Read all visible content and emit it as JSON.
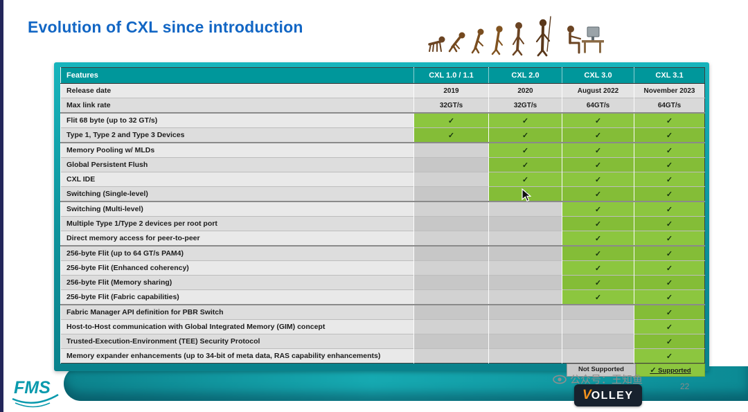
{
  "slide": {
    "title": "Evolution of CXL since introduction",
    "page_number": "22",
    "watermark_text": "公众号：王知鱼"
  },
  "logos": {
    "fms": "FMS",
    "volley_v": "V",
    "volley_rest": "OLLEY"
  },
  "table": {
    "check_glyph": "✓",
    "columns": [
      "Features",
      "CXL 1.0 / 1.1",
      "CXL 2.0",
      "CXL 3.0",
      "CXL 3.1"
    ],
    "info_rows": [
      {
        "feature": "Release date",
        "values": [
          "2019",
          "2020",
          "August 2022",
          "November 2023"
        ]
      },
      {
        "feature": "Max link rate",
        "values": [
          "32GT/s",
          "32GT/s",
          "64GT/s",
          "64GT/s"
        ]
      }
    ],
    "feature_rows": [
      {
        "feature": "Flit 68 byte (up to 32 GT/s)",
        "support": [
          true,
          true,
          true,
          true
        ],
        "group_start": true
      },
      {
        "feature": "Type 1, Type 2 and Type 3 Devices",
        "support": [
          true,
          true,
          true,
          true
        ]
      },
      {
        "feature": "Memory Pooling w/ MLDs",
        "support": [
          false,
          true,
          true,
          true
        ],
        "group_start": true
      },
      {
        "feature": "Global Persistent Flush",
        "support": [
          false,
          true,
          true,
          true
        ]
      },
      {
        "feature": "CXL IDE",
        "support": [
          false,
          true,
          true,
          true
        ]
      },
      {
        "feature": "Switching (Single-level)",
        "support": [
          false,
          true,
          true,
          true
        ]
      },
      {
        "feature": "Switching (Multi-level)",
        "support": [
          false,
          false,
          true,
          true
        ],
        "group_start": true
      },
      {
        "feature": "Multiple Type 1/Type 2 devices per root port",
        "support": [
          false,
          false,
          true,
          true
        ]
      },
      {
        "feature": "Direct memory access for peer-to-peer",
        "support": [
          false,
          false,
          true,
          true
        ]
      },
      {
        "feature": "256-byte Flit (up to 64 GT/s PAM4)",
        "support": [
          false,
          false,
          true,
          true
        ],
        "group_start": true
      },
      {
        "feature": "256-byte Flit (Enhanced coherency)",
        "support": [
          false,
          false,
          true,
          true
        ]
      },
      {
        "feature": "256-byte Flit (Memory sharing)",
        "support": [
          false,
          false,
          true,
          true
        ]
      },
      {
        "feature": "256-byte Flit (Fabric capabilities)",
        "support": [
          false,
          false,
          true,
          true
        ]
      },
      {
        "feature": "Fabric Manager API definition for PBR Switch",
        "support": [
          false,
          false,
          false,
          true
        ],
        "group_start": true
      },
      {
        "feature": "Host-to-Host communication with Global Integrated Memory (GIM) concept",
        "support": [
          false,
          false,
          false,
          true
        ]
      },
      {
        "feature": "Trusted-Execution-Environment (TEE) Security Protocol",
        "support": [
          false,
          false,
          false,
          true
        ]
      },
      {
        "feature": "Memory expander enhancements (up to 34-bit of meta data, RAS capability enhancements)",
        "support": [
          false,
          false,
          false,
          true
        ]
      }
    ],
    "legend": {
      "not_supported": "Not Supported",
      "supported": "Supported"
    }
  },
  "colors": {
    "title_blue": "#1266c4",
    "header_teal": "#00979b",
    "supported_green": "#8cc63f",
    "not_supported_gray": "#d2d2d2",
    "panel_teal": "#0fa3ab"
  }
}
